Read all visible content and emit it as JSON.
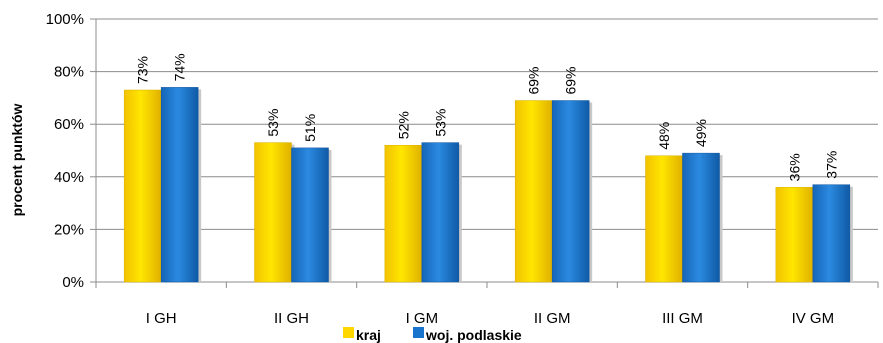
{
  "chart_data": {
    "type": "bar",
    "categories": [
      "I GH",
      "II GH",
      "I GM",
      "II GM",
      "III GM",
      "IV GM"
    ],
    "series": [
      {
        "name": "kraj",
        "values": [
          73,
          53,
          52,
          69,
          48,
          36
        ],
        "labels": [
          "73%",
          "53%",
          "52%",
          "69%",
          "48%",
          "36%"
        ],
        "color": "#FFD700"
      },
      {
        "name": "woj. podlaskie",
        "values": [
          74,
          51,
          53,
          69,
          49,
          37
        ],
        "labels": [
          "74%",
          "51%",
          "53%",
          "69%",
          "49%",
          "37%"
        ],
        "color": "#1874CD"
      }
    ],
    "ylabel": "procent punktów",
    "xlabel": "",
    "title": "",
    "ylim": [
      0,
      100
    ],
    "yticks": [
      "0%",
      "20%",
      "40%",
      "60%",
      "80%",
      "100%"
    ],
    "grid": true,
    "legend_position": "bottom"
  }
}
